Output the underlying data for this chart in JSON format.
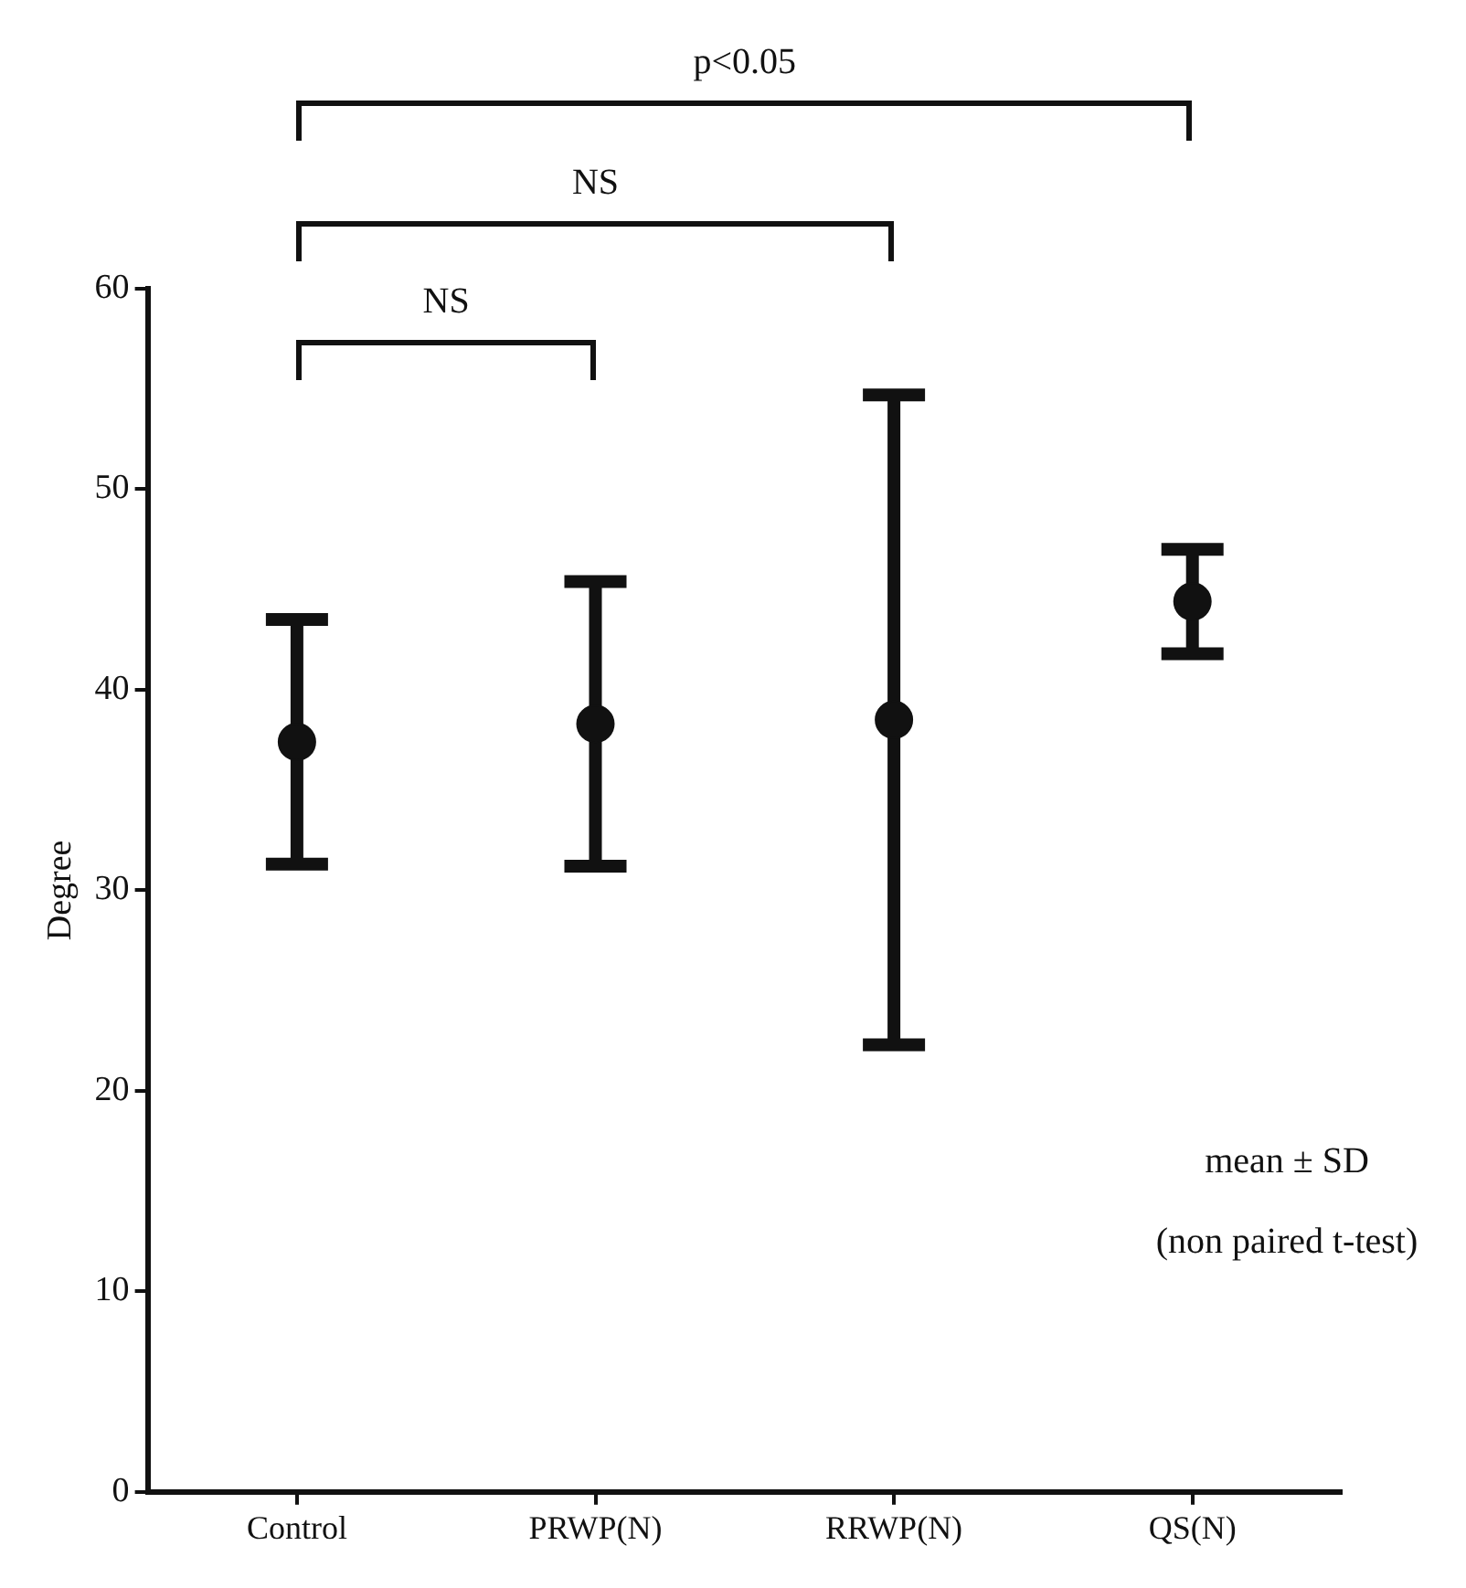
{
  "chart_data": {
    "type": "scatter",
    "ylabel": "Degree",
    "categories": [
      "Control",
      "PRWP(N)",
      "RRWP(N)",
      "QS(N)"
    ],
    "values": [
      37.4,
      38.3,
      38.5,
      44.4
    ],
    "errors": [
      6.1,
      7.1,
      16.2,
      2.6
    ],
    "color": "#111111",
    "marker": "circle",
    "ylim": [
      0,
      60
    ],
    "yticks": [
      0,
      10,
      20,
      30,
      40,
      50,
      60
    ],
    "grid": false,
    "legend": false,
    "annotations": [
      "p<0.05",
      "NS",
      "NS",
      "mean ± SD",
      "(non paired t-test)"
    ]
  }
}
